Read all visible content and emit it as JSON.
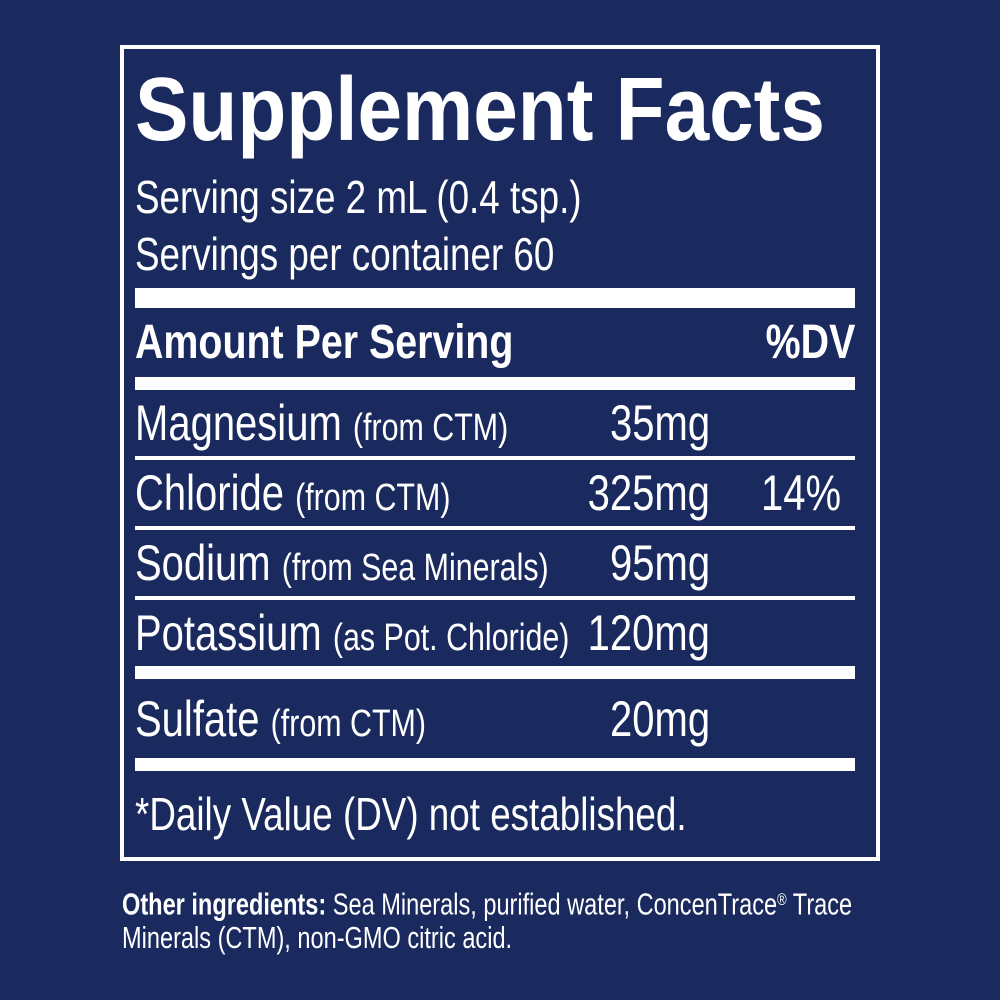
{
  "colors": {
    "background": "#1a2a5e",
    "text": "#ffffff"
  },
  "supplement_facts": {
    "title": "Supplement Facts",
    "serving_size": "Serving size 2 mL (0.4 tsp.)",
    "servings_per_container": "Servings per container 60",
    "header": {
      "amount": "Amount Per Serving",
      "dv": "%DV"
    },
    "rows": [
      {
        "name": "Magnesium",
        "source": "(from CTM)",
        "amount": "35mg",
        "dv": ""
      },
      {
        "name": "Chloride",
        "source": "(from CTM)",
        "amount": "325mg",
        "dv": "14%"
      },
      {
        "name": "Sodium",
        "source": "(from Sea Minerals)",
        "amount": "95mg",
        "dv": ""
      },
      {
        "name": "Potassium",
        "source": "(as Pot. Chloride)",
        "amount": "120mg",
        "dv": ""
      },
      {
        "name": "Sulfate",
        "source": "(from CTM)",
        "amount": "20mg",
        "dv": ""
      }
    ],
    "footnote": "*Daily Value (DV) not established."
  },
  "other_ingredients": {
    "label": "Other ingredients:",
    "line1_text": " Sea Minerals, purified water, ConcenTrace",
    "registered_mark": "®",
    "line1_end": " Trace",
    "line2": "Minerals (CTM), non-GMO citric acid."
  }
}
